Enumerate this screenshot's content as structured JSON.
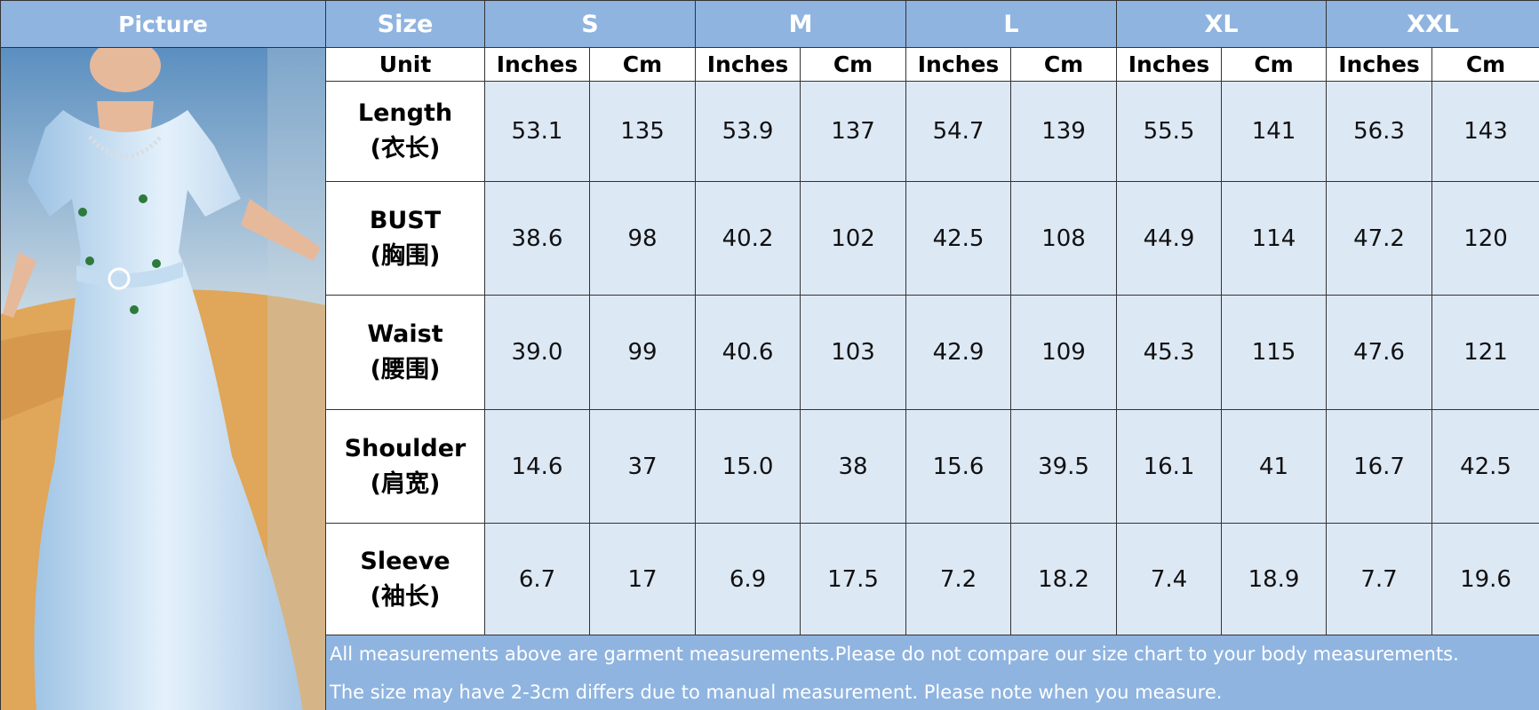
{
  "header": {
    "picture": "Picture",
    "size": "Size",
    "sizes": [
      "S",
      "M",
      "L",
      "XL",
      "XXL"
    ]
  },
  "unit_row": {
    "label": "Unit",
    "columns": [
      "Inches",
      "Cm",
      "Inches",
      "Cm",
      "Inches",
      "Cm",
      "Inches",
      "Cm",
      "Inches",
      "Cm"
    ]
  },
  "rows": [
    {
      "label": "Length",
      "label_cn": "(衣长)",
      "values": [
        "53.1",
        "135",
        "53.9",
        "137",
        "54.7",
        "139",
        "55.5",
        "141",
        "56.3",
        "143"
      ]
    },
    {
      "label": "BUST",
      "label_cn": "(胸围)",
      "values": [
        "38.6",
        "98",
        "40.2",
        "102",
        "42.5",
        "108",
        "44.9",
        "114",
        "47.2",
        "120"
      ]
    },
    {
      "label": "Waist",
      "label_cn": "(腰围)",
      "values": [
        "39.0",
        "99",
        "40.6",
        "103",
        "42.9",
        "109",
        "45.3",
        "115",
        "47.6",
        "121"
      ]
    },
    {
      "label": "Shoulder",
      "label_cn": "(肩宽)",
      "values": [
        "14.6",
        "37",
        "15.0",
        "38",
        "15.6",
        "39.5",
        "16.1",
        "41",
        "16.7",
        "42.5"
      ]
    },
    {
      "label": "Sleeve",
      "label_cn": "(袖长)",
      "values": [
        "6.7",
        "17",
        "6.9",
        "17.5",
        "7.2",
        "18.2",
        "7.4",
        "18.9",
        "7.7",
        "19.6"
      ]
    }
  ],
  "notes": [
    "All measurements above are garment measurements.Please do not compare our size chart to your body measurements.",
    "The size may have 2-3cm differs due to manual measurement. Please note when you measure."
  ]
}
